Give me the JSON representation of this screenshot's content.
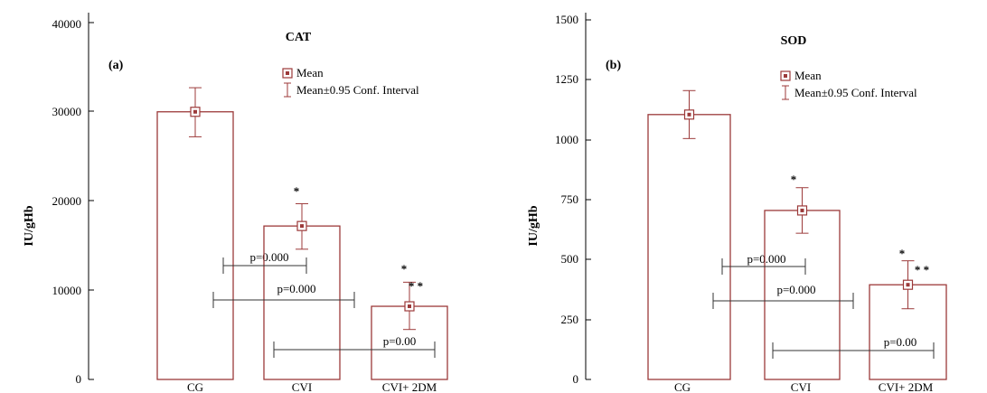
{
  "colors": {
    "bar": "#9c3a3a",
    "axis": "#000000",
    "bracket": "#333333",
    "background": "#ffffff"
  },
  "chart_data": [
    {
      "type": "bar",
      "panel_label": "(a)",
      "title": "CAT",
      "ylabel": "IU/gHb",
      "xlabel": "",
      "categories": [
        "CG",
        "CVI",
        "CVI+ 2DM"
      ],
      "series": [
        {
          "name": "Mean",
          "values": [
            30000,
            17200,
            8200
          ]
        }
      ],
      "ci_low": [
        27200,
        14600,
        5600
      ],
      "ci_high": [
        32700,
        19700,
        10900
      ],
      "ylim": [
        0,
        40000
      ],
      "yticks": [
        0,
        10000,
        20000,
        30000,
        40000
      ],
      "significance_marks": [
        "",
        "*",
        "*\n* *"
      ],
      "comparisons": [
        {
          "from": 0,
          "to": 1,
          "label": "p=0.000"
        },
        {
          "from": 0,
          "to": 2,
          "label": "p=0.000"
        },
        {
          "from": 1,
          "to": 2,
          "label": "p=0.00"
        }
      ],
      "legend": {
        "mean": "Mean",
        "ci": "Mean±0.95 Conf. Interval",
        "position": "top-right"
      }
    },
    {
      "type": "bar",
      "panel_label": "(b)",
      "title": "SOD",
      "ylabel": "IU/gHb",
      "xlabel": "",
      "categories": [
        "CG",
        "CVI",
        "CVI+ 2DM"
      ],
      "series": [
        {
          "name": "Mean",
          "values": [
            1105,
            705,
            395
          ]
        }
      ],
      "ci_low": [
        1005,
        610,
        295
      ],
      "ci_high": [
        1205,
        800,
        495
      ],
      "ylim": [
        0,
        1500
      ],
      "yticks": [
        0,
        250,
        500,
        750,
        1000,
        1250,
        1500
      ],
      "significance_marks": [
        "",
        "*",
        "*\n* *"
      ],
      "comparisons": [
        {
          "from": 0,
          "to": 1,
          "label": "p=0.000"
        },
        {
          "from": 0,
          "to": 2,
          "label": "p=0.000"
        },
        {
          "from": 1,
          "to": 2,
          "label": "p=0.00"
        }
      ],
      "legend": {
        "mean": "Mean",
        "ci": "Mean±0.95 Conf. Interval",
        "position": "top-right"
      }
    }
  ]
}
